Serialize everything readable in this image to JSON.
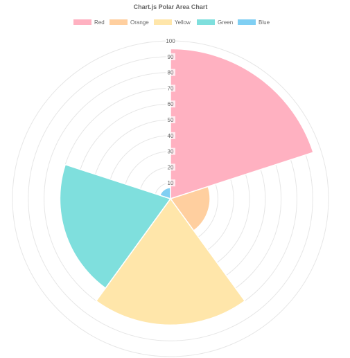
{
  "chart_data": {
    "type": "polarArea",
    "title": "Chart.js Polar Area Chart",
    "categories": [
      "Red",
      "Orange",
      "Yellow",
      "Green",
      "Blue"
    ],
    "values": [
      95,
      25,
      80,
      70,
      7
    ],
    "colors": [
      "#ffb1c1",
      "#ffcf9f",
      "#ffe6aa",
      "#7fdfdd",
      "#80cff3"
    ],
    "r_range": [
      0,
      100
    ],
    "r_ticks": [
      10,
      20,
      30,
      40,
      50,
      60,
      70,
      80,
      90,
      100
    ],
    "grid": true,
    "grid_color": "#e6e6e6",
    "tick_color": "#666666",
    "legend_position": "top"
  }
}
